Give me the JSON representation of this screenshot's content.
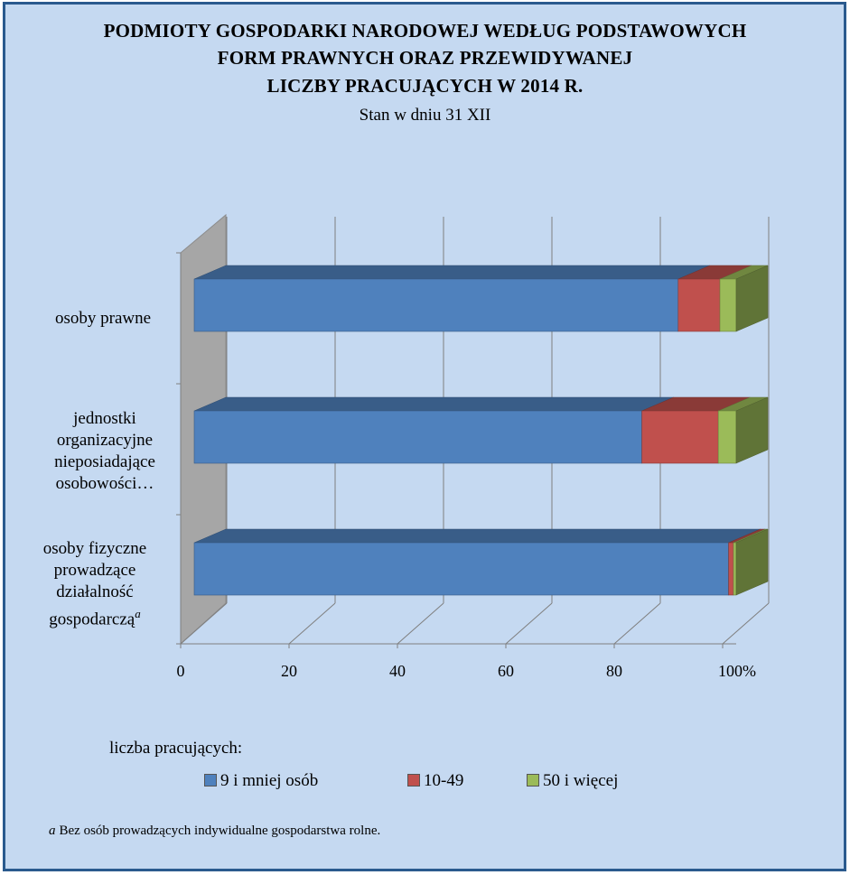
{
  "title_lines": [
    "PODMIOTY  GOSPODARKI NARODOWEJ WEDŁUG PODSTAWOWYCH",
    "FORM PRAWNYCH ORAZ PRZEWIDYWANEJ",
    "LICZBY PRACUJĄCYCH  W 2014 R."
  ],
  "subtitle": "Stan w dniu 31 XII",
  "legend_title": "liczba pracujących:",
  "footnote": {
    "mark": "a",
    "text": "Bez osób prowadzących indywidualne  gospodarstwa rolne."
  },
  "chart_data": {
    "type": "bar",
    "orientation": "horizontal",
    "stacked": "percent",
    "three_d": true,
    "categories": [
      "osoby prawne",
      "jednostki organizacyjne nieposiadające osobowości…",
      "osoby fizyczne prowadzące działalność gospodarczą"
    ],
    "category_footnote_marks": [
      "",
      "",
      "a"
    ],
    "series": [
      {
        "name": "9 i mniej osób",
        "color": "#4f81bd",
        "values": [
          89.3,
          82.6,
          98.6
        ]
      },
      {
        "name": "10-49",
        "color": "#c0504d",
        "values": [
          7.7,
          14.1,
          0.9
        ]
      },
      {
        "name": "50 i więcej",
        "color": "#9bbb59",
        "values": [
          3.0,
          3.3,
          0.5
        ]
      }
    ],
    "xlim": [
      0,
      100
    ],
    "x_ticks": [
      "0",
      "20",
      "40",
      "60",
      "80",
      "100%"
    ],
    "grid": true,
    "legend_position": "bottom"
  }
}
